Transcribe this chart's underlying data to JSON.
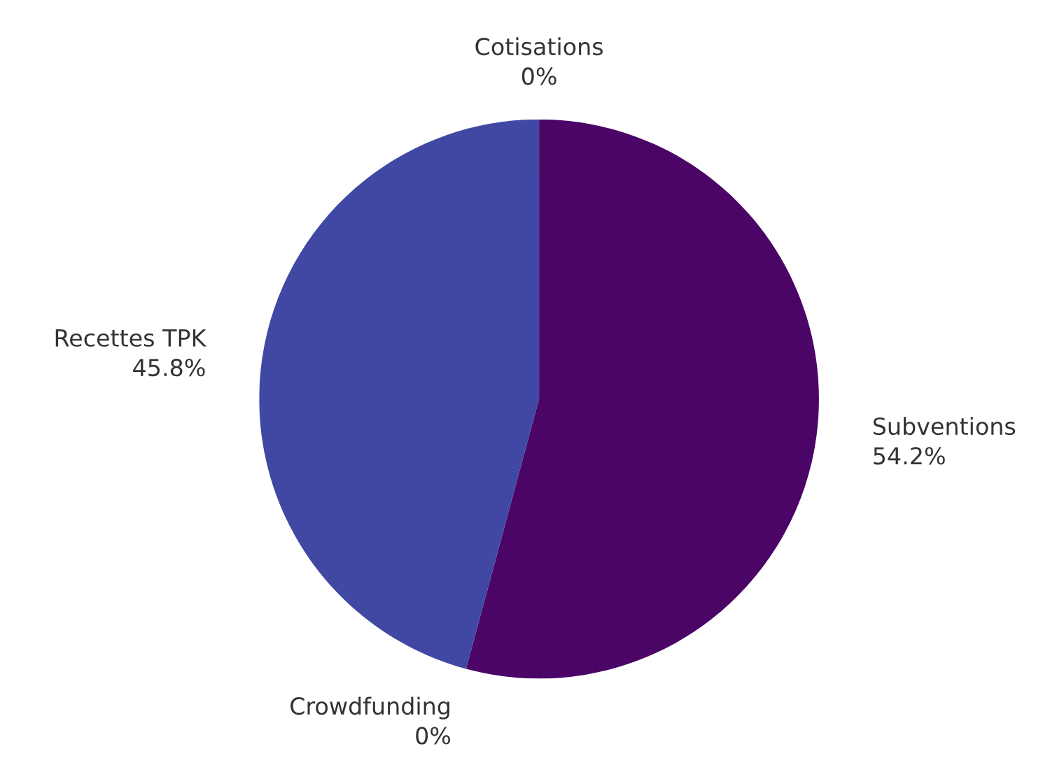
{
  "chart_data": {
    "type": "pie",
    "categories": [
      "Subventions",
      "Crowdfunding",
      "Recettes TPK",
      "Cotisations"
    ],
    "values": [
      54.2,
      0,
      45.8,
      0
    ],
    "colors": [
      "#4a0567",
      "#2f6fb0",
      "#4048a3",
      "#6a5acd"
    ],
    "value_labels": [
      "54.2%",
      "0%",
      "45.8%",
      "0%"
    ],
    "legend": false
  }
}
